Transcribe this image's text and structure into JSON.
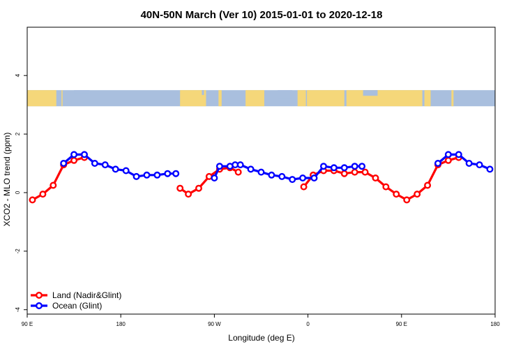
{
  "chart_data": {
    "type": "line",
    "title": "40N-50N March (Ver 10)   2015-01-01 to 2020-12-18",
    "xlabel": "Longitude (deg E)",
    "ylabel": "XCO2 - MLO trend (ppm)",
    "xlim": [
      90,
      540
    ],
    "ylim": [
      -4.15,
      5.65
    ],
    "x_ticks": [
      {
        "value": 90,
        "label": "90 E"
      },
      {
        "value": 180,
        "label": "180"
      },
      {
        "value": 270,
        "label": "90 W"
      },
      {
        "value": 360,
        "label": "0"
      },
      {
        "value": 450,
        "label": "90 E"
      },
      {
        "value": 540,
        "label": "180"
      }
    ],
    "y_ticks": [
      {
        "value": -4,
        "label": "-4"
      },
      {
        "value": -2,
        "label": "-2"
      },
      {
        "value": 0,
        "label": "0"
      },
      {
        "value": 2,
        "label": "2"
      },
      {
        "value": 4,
        "label": "4"
      }
    ],
    "map_strip": {
      "y_from": 2.95,
      "y_to": 3.5,
      "land_color": "#f5d77a",
      "ocean_color": "#a9bfde"
    },
    "legend_position": "bottom-left",
    "series": [
      {
        "name": "Land (Nadir&Glint)",
        "color": "#ff0000",
        "segments": [
          [
            [
              95,
              -0.25
            ],
            [
              105,
              -0.05
            ],
            [
              115,
              0.25
            ],
            [
              125,
              0.95
            ],
            [
              135,
              1.1
            ],
            [
              145,
              1.2
            ]
          ],
          [
            [
              237,
              0.15
            ],
            [
              245,
              -0.05
            ],
            [
              255,
              0.15
            ],
            [
              265,
              0.55
            ],
            [
              275,
              0.8
            ],
            [
              285,
              0.85
            ],
            [
              293,
              0.7
            ]
          ],
          [
            [
              356,
              0.2
            ],
            [
              365,
              0.6
            ],
            [
              375,
              0.75
            ],
            [
              385,
              0.75
            ],
            [
              395,
              0.65
            ],
            [
              405,
              0.7
            ],
            [
              415,
              0.7
            ],
            [
              425,
              0.5
            ],
            [
              435,
              0.2
            ],
            [
              445,
              -0.05
            ],
            [
              455,
              -0.25
            ],
            [
              465,
              -0.05
            ],
            [
              475,
              0.25
            ],
            [
              485,
              0.95
            ],
            [
              495,
              1.1
            ],
            [
              505,
              1.2
            ]
          ]
        ]
      },
      {
        "name": "Ocean (Glint)",
        "color": "#0000ff",
        "segments": [
          [
            [
              125,
              1.0
            ],
            [
              135,
              1.3
            ],
            [
              145,
              1.3
            ],
            [
              155,
              1.0
            ],
            [
              165,
              0.95
            ],
            [
              175,
              0.8
            ],
            [
              185,
              0.75
            ],
            [
              195,
              0.55
            ],
            [
              205,
              0.6
            ],
            [
              215,
              0.6
            ],
            [
              225,
              0.65
            ],
            [
              233,
              0.65
            ]
          ],
          [
            [
              270,
              0.5
            ],
            [
              275,
              0.9
            ],
            [
              285,
              0.9
            ],
            [
              290,
              0.95
            ],
            [
              295,
              0.95
            ],
            [
              305,
              0.8
            ],
            [
              315,
              0.7
            ],
            [
              325,
              0.6
            ],
            [
              335,
              0.55
            ],
            [
              345,
              0.45
            ],
            [
              355,
              0.5
            ],
            [
              366,
              0.5
            ],
            [
              375,
              0.9
            ],
            [
              385,
              0.85
            ],
            [
              395,
              0.85
            ],
            [
              405,
              0.9
            ],
            [
              412,
              0.9
            ]
          ],
          [
            [
              485,
              1.0
            ],
            [
              495,
              1.3
            ],
            [
              505,
              1.3
            ],
            [
              515,
              1.0
            ],
            [
              525,
              0.95
            ],
            [
              535,
              0.8
            ]
          ]
        ]
      }
    ]
  }
}
